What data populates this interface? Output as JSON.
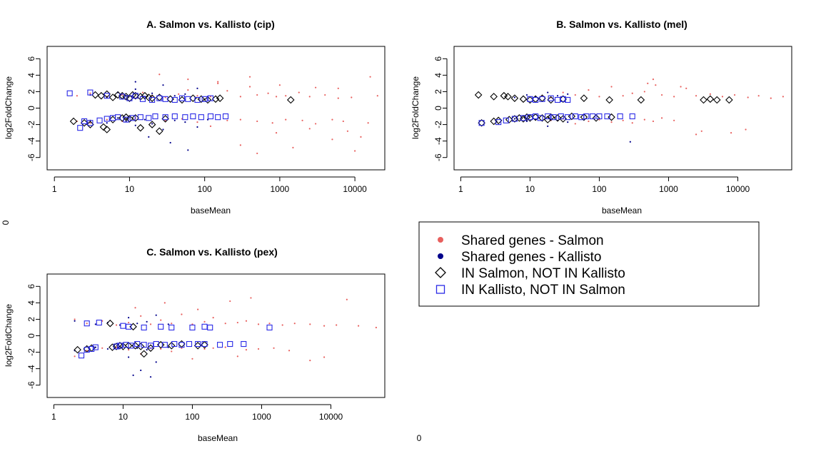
{
  "colors": {
    "salmon": "#e8605e",
    "kallisto": "#00008b",
    "in_salmon_only": "#000000",
    "in_kallisto_only": "#2a2ae6"
  },
  "stray_labels": [
    "0",
    "0"
  ],
  "legend": {
    "entries": [
      {
        "label": "Shared genes - Salmon",
        "symbol": "filled-circle",
        "color": "#e8605e"
      },
      {
        "label": "Shared genes - Kallisto",
        "symbol": "filled-circle",
        "color": "#00008b"
      },
      {
        "label": "IN Salmon, NOT IN Kallisto",
        "symbol": "open-diamond",
        "color": "#000000"
      },
      {
        "label": "IN Kallisto, NOT IN Salmon",
        "symbol": "open-square",
        "color": "#2a2ae6"
      }
    ]
  },
  "chart_data": [
    {
      "type": "scatter",
      "title": "A. Salmon vs. Kallisto (cip)",
      "xlabel": "baseMean",
      "ylabel": "log2FoldChange",
      "xscale": "log",
      "xlim": [
        0.8,
        25000
      ],
      "ylim": [
        -7.5,
        7.5
      ],
      "xticks": [
        1,
        10,
        100,
        1000,
        10000
      ],
      "xtick_labels": [
        "1",
        "10",
        "100",
        "1000",
        "10000"
      ],
      "yticks": [
        -6,
        -4,
        -2,
        0,
        2,
        4,
        6
      ],
      "ytick_labels": [
        "-6",
        "-4",
        "-2",
        "0",
        "2",
        "4",
        "6"
      ],
      "grid": false,
      "series": [
        {
          "name": "Shared genes - Salmon",
          "marker": "dot",
          "color": "#e8605e",
          "x": [
            2,
            3,
            5,
            8,
            12,
            15,
            20,
            30,
            45,
            60,
            80,
            120,
            150,
            200,
            300,
            400,
            500,
            700,
            900,
            1200,
            1800,
            2500,
            4000,
            6000,
            9000,
            16000,
            20000,
            2,
            3,
            5,
            8,
            12,
            20,
            30,
            50,
            80,
            120,
            200,
            300,
            500,
            800,
            1200,
            2000,
            3000,
            5000,
            7000,
            12000,
            15000,
            300,
            500,
            900,
            1500,
            2500,
            5000,
            8000,
            10000,
            25,
            60,
            150,
            400,
            1000,
            3000,
            6000
          ],
          "y": [
            1.5,
            1.8,
            1.4,
            1.6,
            1.2,
            1.9,
            1.5,
            1.3,
            1.7,
            2.2,
            1.5,
            1.4,
            3.0,
            2.1,
            1.4,
            2.6,
            1.6,
            1.8,
            1.4,
            1.5,
            1.9,
            1.4,
            1.6,
            2.4,
            1.3,
            3.8,
            1.5,
            -1.6,
            -1.8,
            -1.4,
            -1.6,
            -1.2,
            -1.9,
            -1.5,
            -1.3,
            -1.7,
            -2.2,
            -1.5,
            -1.4,
            -1.6,
            -1.8,
            -1.4,
            -1.5,
            -1.9,
            -1.4,
            -1.6,
            -3.5,
            -1.8,
            -4.5,
            -5.5,
            -3.0,
            -4.8,
            -2.5,
            -3.8,
            -2.8,
            -5.2,
            4.1,
            3.5,
            3.2,
            3.8,
            2.8,
            2.5,
            1.2
          ]
        },
        {
          "name": "Shared genes - Kallisto",
          "marker": "dot",
          "color": "#00008b",
          "x": [
            3,
            5,
            7,
            9,
            12,
            16,
            20,
            28,
            40,
            55,
            80,
            110,
            3,
            5,
            7,
            9,
            12,
            16,
            20,
            28,
            40,
            55,
            80,
            110,
            12,
            18,
            35,
            60
          ],
          "y": [
            1.6,
            1.3,
            1.9,
            1.5,
            2.3,
            1.4,
            1.8,
            2.8,
            1.5,
            1.7,
            2.4,
            1.4,
            -1.5,
            -1.8,
            -1.2,
            -1.6,
            -2.1,
            -1.4,
            -1.9,
            -2.6,
            -1.5,
            -1.7,
            -2.3,
            -1.4,
            3.2,
            -3.5,
            -4.2,
            -5.1
          ]
        },
        {
          "name": "IN Salmon, NOT IN Kallisto",
          "marker": "open-diamond",
          "color": "#000000",
          "x": [
            3.5,
            4.2,
            5,
            6,
            7,
            8,
            9,
            10,
            11,
            12,
            14,
            16,
            18,
            20,
            25,
            35,
            50,
            70,
            90,
            110,
            140,
            160,
            1400,
            1.8,
            2.5,
            3,
            4.5,
            5,
            6,
            8,
            9,
            10,
            12,
            14,
            20,
            25,
            30
          ],
          "y": [
            1.6,
            1.5,
            1.7,
            1.3,
            1.6,
            1.5,
            1.4,
            1.2,
            1.6,
            1.5,
            1.4,
            1.5,
            1.3,
            1.2,
            1.3,
            1.1,
            1.0,
            1.2,
            1.1,
            1.0,
            1.1,
            1.2,
            1.0,
            -1.6,
            -1.8,
            -2.0,
            -2.3,
            -2.6,
            -1.4,
            -1.2,
            -1.1,
            -1.3,
            -1.2,
            -2.4,
            -2.0,
            -2.8,
            -1.3
          ]
        },
        {
          "name": "IN Kallisto, NOT IN Salmon",
          "marker": "open-square",
          "color": "#2a2ae6",
          "x": [
            1.6,
            3,
            5,
            8,
            10,
            12,
            15,
            20,
            25,
            30,
            40,
            50,
            60,
            80,
            100,
            120,
            2.2,
            2.5,
            3,
            4,
            5,
            6,
            7,
            9,
            11,
            14,
            18,
            22,
            30,
            40,
            55,
            70,
            90,
            120,
            150,
            190
          ],
          "y": [
            1.8,
            1.9,
            1.5,
            1.4,
            1.2,
            1.5,
            1.1,
            1.0,
            1.2,
            1.1,
            1.0,
            1.2,
            1.1,
            1.0,
            1.1,
            1.2,
            -2.4,
            -1.6,
            -1.8,
            -1.5,
            -1.3,
            -1.2,
            -1.1,
            -1.4,
            -1.2,
            -1.1,
            -1.2,
            -1.0,
            -1.1,
            -1.0,
            -1.1,
            -1.0,
            -1.1,
            -1.0,
            -1.1,
            -1.0
          ]
        }
      ]
    },
    {
      "type": "scatter",
      "title": "B. Salmon vs. Kallisto (mel)",
      "xlabel": "baseMean",
      "ylabel": "log2FoldChange",
      "xscale": "log",
      "xlim": [
        0.8,
        60000
      ],
      "ylim": [
        -7.5,
        7.5
      ],
      "xticks": [
        1,
        10,
        100,
        1000,
        10000
      ],
      "xtick_labels": [
        "1",
        "10",
        "100",
        "1000",
        "10000"
      ],
      "yticks": [
        -6,
        -4,
        -2,
        0,
        2,
        4,
        6
      ],
      "ytick_labels": [
        "-6",
        "-4",
        "-2",
        "0",
        "2",
        "4",
        "6"
      ],
      "grid": false,
      "series": [
        {
          "name": "Shared genes - Salmon",
          "marker": "dot",
          "color": "#e8605e",
          "x": [
            15,
            20,
            30,
            45,
            70,
            100,
            150,
            220,
            300,
            450,
            600,
            800,
            1200,
            1800,
            2500,
            4000,
            6000,
            9000,
            14000,
            20000,
            30000,
            45000,
            20,
            30,
            45,
            70,
            100,
            150,
            220,
            300,
            450,
            600,
            800,
            1200,
            2500,
            3000,
            8000,
            13000,
            500,
            650,
            1500
          ],
          "y": [
            1.5,
            1.3,
            1.9,
            1.6,
            2.2,
            1.4,
            2.6,
            1.5,
            1.8,
            2.0,
            3.5,
            1.6,
            1.4,
            2.4,
            1.5,
            1.7,
            1.4,
            1.6,
            1.3,
            1.5,
            1.2,
            1.4,
            -1.5,
            -1.3,
            -1.9,
            -1.6,
            -1.4,
            -1.7,
            -1.5,
            -1.8,
            -1.4,
            -1.6,
            -1.2,
            -1.5,
            -3.2,
            -2.8,
            -3.0,
            -2.6,
            3.0,
            2.8,
            2.6
          ]
        },
        {
          "name": "Shared genes - Kallisto",
          "marker": "dot",
          "color": "#00008b",
          "x": [
            6,
            9,
            12,
            18,
            25,
            35,
            6,
            9,
            12,
            18,
            25,
            35,
            280
          ],
          "y": [
            1.3,
            1.6,
            1.4,
            1.9,
            1.5,
            1.7,
            -1.3,
            -1.6,
            -1.4,
            -2.2,
            -1.5,
            -1.7,
            -4.1
          ]
        },
        {
          "name": "IN Salmon, NOT IN Kallisto",
          "marker": "open-diamond",
          "color": "#000000",
          "x": [
            1.8,
            3,
            4.2,
            4.8,
            6,
            8,
            10,
            12,
            15,
            20,
            30,
            60,
            140,
            400,
            3200,
            4000,
            5000,
            7500,
            2,
            3,
            3.5,
            5,
            6,
            7,
            8,
            9,
            10,
            12,
            15,
            18,
            20,
            25,
            30,
            40,
            60,
            90,
            150
          ],
          "y": [
            1.6,
            1.4,
            1.5,
            1.4,
            1.2,
            1.1,
            1.0,
            1.1,
            1.2,
            1.0,
            1.1,
            1.2,
            1.0,
            1.0,
            1.0,
            1.1,
            1.0,
            1.0,
            -1.8,
            -1.6,
            -1.5,
            -1.4,
            -1.3,
            -1.2,
            -1.3,
            -1.1,
            -1.2,
            -1.1,
            -1.2,
            -1.4,
            -1.1,
            -1.2,
            -1.3,
            -1.0,
            -1.1,
            -1.2,
            -1.1
          ]
        },
        {
          "name": "IN Kallisto, NOT IN Salmon",
          "marker": "open-square",
          "color": "#2a2ae6",
          "x": [
            10,
            12,
            15,
            20,
            25,
            30,
            35,
            2,
            3.5,
            4.5,
            6,
            8,
            10,
            12,
            14,
            18,
            22,
            28,
            35,
            45,
            55,
            65,
            80,
            100,
            130,
            200,
            300
          ],
          "y": [
            1.1,
            1.0,
            1.1,
            1.2,
            1.0,
            1.1,
            1.0,
            -1.8,
            -1.7,
            -1.5,
            -1.3,
            -1.2,
            -1.1,
            -1.0,
            -1.2,
            -1.0,
            -1.1,
            -1.0,
            -1.1,
            -1.0,
            -1.1,
            -1.0,
            -1.0,
            -1.0,
            -1.0,
            -1.0,
            -1.0
          ]
        }
      ]
    },
    {
      "type": "scatter",
      "title": "C. Salmon vs. Kallisto (pex)",
      "xlabel": "baseMean",
      "ylabel": "log2FoldChange",
      "xscale": "log",
      "xlim": [
        0.8,
        60000
      ],
      "ylim": [
        -7.5,
        7.5
      ],
      "xticks": [
        1,
        10,
        100,
        1000,
        10000
      ],
      "xtick_labels": [
        "1",
        "10",
        "100",
        "1000",
        "10000"
      ],
      "yticks": [
        -6,
        -4,
        -2,
        0,
        2,
        4,
        6
      ],
      "ytick_labels": [
        "-6",
        "-4",
        "-2",
        "0",
        "2",
        "4",
        "6"
      ],
      "grid": false,
      "series": [
        {
          "name": "Shared genes - Salmon",
          "marker": "dot",
          "color": "#e8605e",
          "x": [
            2,
            3,
            5,
            8,
            12,
            18,
            25,
            35,
            50,
            70,
            100,
            150,
            200,
            300,
            450,
            600,
            900,
            1300,
            2000,
            3000,
            5000,
            8000,
            12000,
            17000,
            25000,
            45000,
            2,
            3,
            5,
            8,
            12,
            18,
            25,
            35,
            50,
            70,
            100,
            150,
            200,
            300,
            450,
            600,
            900,
            1500,
            2500,
            5000,
            8000,
            15,
            40,
            120,
            350,
            700
          ],
          "y": [
            2.0,
            1.5,
            1.8,
            1.3,
            1.6,
            2.4,
            1.4,
            1.9,
            1.5,
            2.6,
            1.4,
            1.7,
            2.2,
            1.5,
            1.6,
            1.8,
            1.4,
            1.5,
            1.3,
            1.5,
            1.4,
            1.2,
            1.3,
            4.4,
            1.2,
            1.0,
            -2.5,
            -1.8,
            -1.5,
            -1.4,
            -1.7,
            -2.2,
            -1.5,
            -1.6,
            -1.9,
            -1.5,
            -2.8,
            -1.6,
            -1.5,
            -1.4,
            -2.5,
            -1.7,
            -1.6,
            -1.5,
            -1.8,
            -3.0,
            -2.6,
            3.4,
            4.0,
            3.2,
            4.2,
            4.6
          ]
        },
        {
          "name": "Shared genes - Kallisto",
          "marker": "dot",
          "color": "#00008b",
          "x": [
            2,
            4,
            6,
            9,
            12,
            16,
            22,
            30,
            45,
            2,
            4,
            6,
            9,
            12,
            16,
            22,
            30,
            45,
            14,
            18,
            25
          ],
          "y": [
            1.8,
            1.4,
            1.6,
            1.3,
            2.2,
            1.5,
            1.7,
            2.5,
            1.4,
            -1.8,
            -1.4,
            -1.6,
            -1.3,
            -2.6,
            -1.5,
            -1.7,
            -3.2,
            -1.4,
            -4.8,
            -4.2,
            -5.0
          ]
        },
        {
          "name": "IN Salmon, NOT IN Kallisto",
          "marker": "open-diamond",
          "color": "#000000",
          "x": [
            6.5,
            14,
            2.2,
            3,
            3.5,
            7,
            8,
            9,
            10,
            12,
            15,
            18,
            20,
            25,
            35,
            50,
            70,
            120,
            150
          ],
          "y": [
            1.5,
            1.1,
            -1.7,
            -1.6,
            -1.5,
            -1.4,
            -1.3,
            -1.2,
            -1.3,
            -1.2,
            -1.2,
            -1.3,
            -2.2,
            -1.5,
            -1.1,
            -1.2,
            -1.0,
            -1.2,
            -1.1
          ],
          "note": ""
        },
        {
          "name": "IN Kallisto, NOT IN Salmon",
          "marker": "open-square",
          "color": "#2a2ae6",
          "x": [
            3,
            4.5,
            10,
            12,
            20,
            35,
            50,
            100,
            150,
            180,
            1300,
            2.5,
            3,
            3.5,
            4,
            8,
            9,
            11,
            13,
            16,
            20,
            25,
            30,
            40,
            55,
            70,
            90,
            120,
            150,
            250,
            350,
            550
          ],
          "y": [
            1.5,
            1.6,
            1.2,
            1.1,
            1.0,
            1.1,
            1.0,
            1.0,
            1.1,
            1.0,
            1.0,
            -2.4,
            -1.7,
            -1.6,
            -1.4,
            -1.3,
            -1.2,
            -1.1,
            -1.2,
            -1.0,
            -1.1,
            -1.2,
            -1.0,
            -1.1,
            -1.0,
            -1.1,
            -1.0,
            -1.0,
            -1.0,
            -1.1,
            -1.0,
            -1.0
          ]
        }
      ]
    }
  ]
}
